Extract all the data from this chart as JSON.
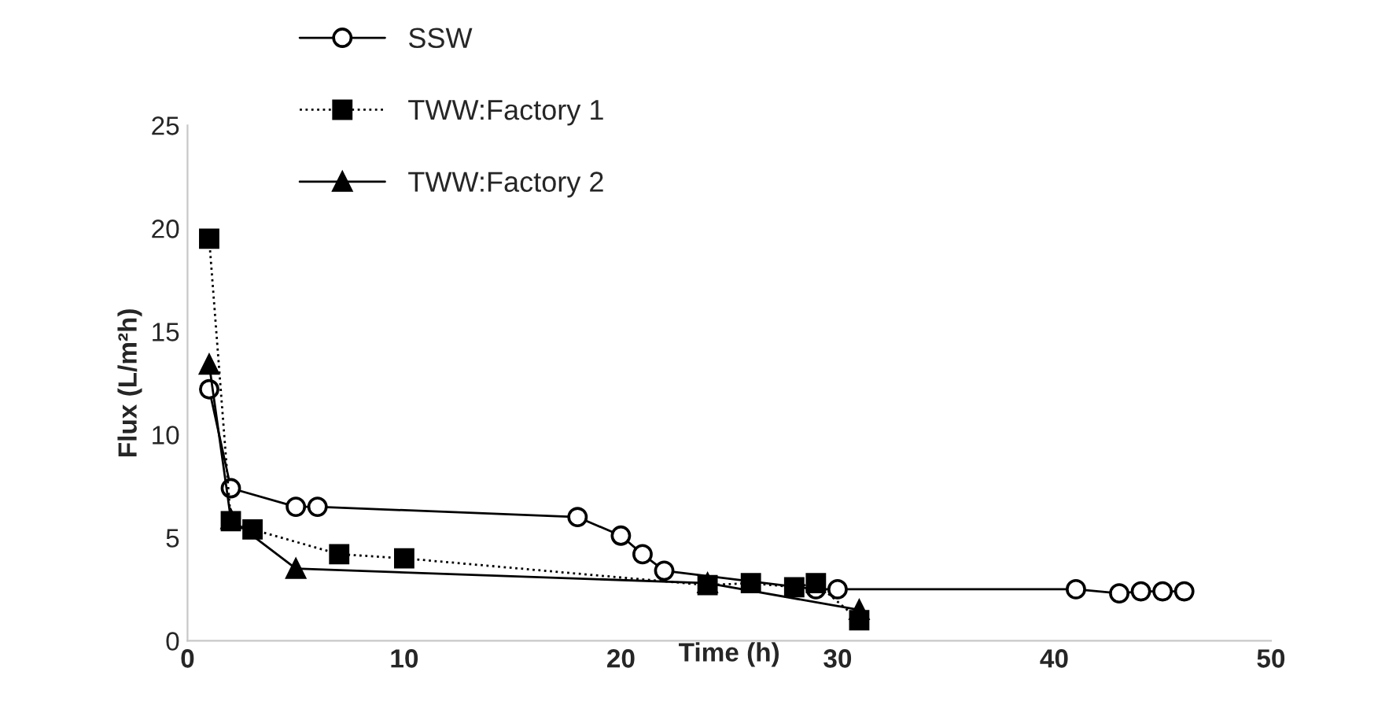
{
  "chart_data": {
    "type": "line",
    "xlabel": "Time (h)",
    "ylabel": "Flux (L/m²h)",
    "xlim": [
      0,
      50
    ],
    "xticks": [
      0,
      10,
      20,
      30,
      40,
      50
    ],
    "ylim": [
      0,
      25
    ],
    "yticks": [
      0,
      5,
      10,
      15,
      20,
      25
    ],
    "grid": false,
    "legend": "top left",
    "series": [
      {
        "name": "SSW",
        "color": "#000000",
        "marker": "circle",
        "line_style": "solid",
        "x": [
          1,
          2,
          5,
          6,
          18,
          20,
          21,
          22,
          29,
          30,
          41,
          43,
          44,
          45,
          46
        ],
        "values": [
          12.2,
          7.4,
          6.5,
          6.5,
          6.0,
          5.1,
          4.2,
          3.4,
          2.5,
          2.5,
          2.5,
          2.3,
          2.4,
          2.4,
          2.4
        ]
      },
      {
        "name": "TWW:Factory 1",
        "color": "#000000",
        "marker": "square",
        "line_style": "dotted",
        "x": [
          1,
          2,
          3,
          7,
          10,
          24,
          26,
          28,
          29,
          31
        ],
        "values": [
          19.5,
          5.8,
          5.4,
          4.2,
          4.0,
          2.7,
          2.8,
          2.6,
          2.8,
          1.0
        ]
      },
      {
        "name": "TWW:Factory 2",
        "color": "#000000",
        "marker": "triangle",
        "line_style": "solid",
        "x": [
          1,
          2,
          5,
          24,
          31
        ],
        "values": [
          13.4,
          5.9,
          3.5,
          2.8,
          1.5
        ]
      }
    ]
  }
}
